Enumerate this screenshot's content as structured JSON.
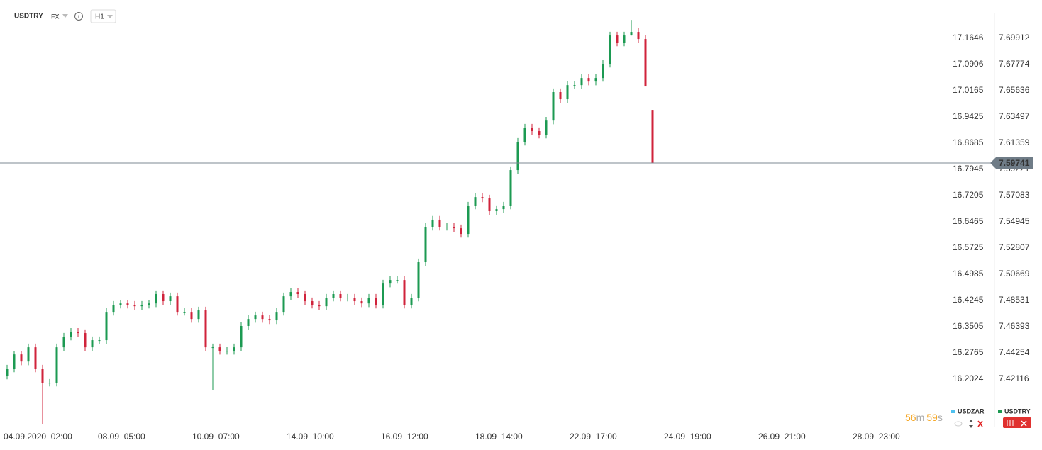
{
  "header": {
    "symbol": "USDTRY",
    "market": "FX",
    "interval": "H1"
  },
  "chart_data": {
    "type": "ohlc",
    "x": [
      0,
      1,
      2,
      3,
      4,
      5,
      6,
      7,
      8,
      9,
      10,
      11,
      12,
      13,
      14,
      15,
      16,
      17,
      18,
      19,
      20,
      21,
      22,
      23,
      24,
      25,
      26,
      27,
      28,
      29,
      30,
      31,
      32,
      33,
      34,
      35,
      36,
      37,
      38,
      39,
      40,
      41,
      42,
      43,
      44,
      45,
      46,
      47,
      48,
      49,
      50,
      51,
      52,
      53,
      54,
      55,
      56,
      57,
      58,
      59,
      60,
      61,
      62,
      63,
      64,
      65,
      66,
      67,
      68,
      69,
      70,
      71,
      72,
      73,
      74,
      75,
      76,
      77,
      78,
      79,
      80,
      81,
      82,
      83,
      84,
      85,
      86,
      87,
      88,
      89,
      90,
      91
    ],
    "series": [
      {
        "name": "USDTRY",
        "axis": "y2",
        "up_color": "#1c9a52",
        "down_color": "#d0233b",
        "open": [
          7.424,
          7.4298,
          7.4413,
          7.4355,
          7.4471,
          7.4298,
          7.4182,
          7.4182,
          7.4471,
          7.4558,
          7.4598,
          7.4587,
          7.4471,
          7.4529,
          7.4529,
          7.476,
          7.4818,
          7.4829,
          7.4818,
          7.4806,
          7.4818,
          7.4829,
          7.4905,
          7.4847,
          7.4887,
          7.476,
          7.476,
          7.4702,
          7.4772,
          7.4471,
          7.4471,
          7.4442,
          7.4442,
          7.4471,
          7.4645,
          7.4702,
          7.4731,
          7.4702,
          7.4691,
          7.476,
          7.4887,
          7.4922,
          7.4905,
          7.4847,
          7.4818,
          7.4806,
          7.4876,
          7.4905,
          7.4876,
          7.4876,
          7.4847,
          7.4829,
          7.4876,
          7.4818,
          7.4991,
          7.502,
          7.502,
          7.4818,
          7.4876,
          7.5165,
          7.5454,
          7.5512,
          7.5454,
          7.5454,
          7.5442,
          7.5396,
          7.5627,
          7.5696,
          7.5685,
          7.5581,
          7.5598,
          7.5627,
          7.5916,
          7.6147,
          7.6263,
          7.6234,
          7.6205,
          7.632,
          7.6552,
          7.6494,
          7.6609,
          7.6609,
          7.6667,
          7.6638,
          7.6667,
          7.6783,
          7.7014,
          7.6956,
          7.7014,
          7.7043,
          7.6985,
          7.6407
        ],
        "high": [
          7.4328,
          7.4443,
          7.4443,
          7.4501,
          7.4501,
          7.4328,
          7.4212,
          7.4501,
          7.4588,
          7.4628,
          7.4628,
          7.4617,
          7.4559,
          7.4559,
          7.479,
          7.4848,
          7.4859,
          7.4859,
          7.4848,
          7.4848,
          7.4859,
          7.4935,
          7.4935,
          7.4917,
          7.4917,
          7.479,
          7.479,
          7.4802,
          7.4802,
          7.4501,
          7.4501,
          7.4472,
          7.4501,
          7.4675,
          7.4732,
          7.4761,
          7.4761,
          7.4732,
          7.479,
          7.4917,
          7.4952,
          7.4952,
          7.4935,
          7.4877,
          7.4848,
          7.4906,
          7.4935,
          7.4935,
          7.4906,
          7.4906,
          7.4877,
          7.4906,
          7.4906,
          7.5021,
          7.505,
          7.505,
          7.505,
          7.4906,
          7.5195,
          7.5484,
          7.5542,
          7.5542,
          7.5484,
          7.5484,
          7.5472,
          7.5657,
          7.5726,
          7.5726,
          7.5715,
          7.5628,
          7.5657,
          7.5946,
          7.6177,
          7.6293,
          7.6293,
          7.6264,
          7.635,
          7.6582,
          7.6582,
          7.6639,
          7.6639,
          7.6697,
          7.6697,
          7.6697,
          7.6813,
          7.7044,
          7.7044,
          7.7044,
          7.7141,
          7.7073,
          7.7015,
          7.6407
        ],
        "low": [
          7.421,
          7.4268,
          7.4325,
          7.4325,
          7.4268,
          7.3847,
          7.4152,
          7.4152,
          7.4441,
          7.4528,
          7.4557,
          7.4441,
          7.4441,
          7.4499,
          7.4499,
          7.473,
          7.4788,
          7.4788,
          7.4776,
          7.4776,
          7.4788,
          7.4799,
          7.4817,
          7.4817,
          7.473,
          7.473,
          7.4672,
          7.4672,
          7.4441,
          7.4124,
          7.4412,
          7.4412,
          7.4412,
          7.4441,
          7.4615,
          7.4672,
          7.4672,
          7.4661,
          7.4661,
          7.473,
          7.4857,
          7.4875,
          7.4817,
          7.4788,
          7.4776,
          7.4776,
          7.4846,
          7.4846,
          7.4846,
          7.4817,
          7.4799,
          7.4799,
          7.4788,
          7.4788,
          7.4961,
          7.499,
          7.4788,
          7.4788,
          7.4846,
          7.5135,
          7.5424,
          7.5424,
          7.5424,
          7.5412,
          7.5366,
          7.5366,
          7.5597,
          7.5655,
          7.5551,
          7.5551,
          7.5568,
          7.5597,
          7.5886,
          7.6117,
          7.6204,
          7.6175,
          7.6175,
          7.629,
          7.6464,
          7.6464,
          7.6579,
          7.6579,
          7.6608,
          7.6608,
          7.6637,
          7.6753,
          7.6926,
          7.6926,
          7.7013,
          7.6955,
          7.6598,
          7.5974
        ],
        "close": [
          7.4298,
          7.4413,
          7.4355,
          7.4471,
          7.4298,
          7.4182,
          7.4182,
          7.4471,
          7.4558,
          7.4598,
          7.4587,
          7.4471,
          7.4529,
          7.4529,
          7.476,
          7.4818,
          7.4829,
          7.4818,
          7.4806,
          7.4818,
          7.4829,
          7.4905,
          7.4847,
          7.4887,
          7.476,
          7.476,
          7.4702,
          7.4772,
          7.4471,
          7.4471,
          7.4442,
          7.4442,
          7.4471,
          7.4645,
          7.4702,
          7.4731,
          7.4702,
          7.4691,
          7.476,
          7.4887,
          7.4922,
          7.4905,
          7.4847,
          7.4818,
          7.4806,
          7.4876,
          7.4905,
          7.4876,
          7.4876,
          7.4847,
          7.4829,
          7.4876,
          7.4818,
          7.4991,
          7.502,
          7.502,
          7.4818,
          7.4876,
          7.5165,
          7.5454,
          7.5512,
          7.5454,
          7.5454,
          7.5442,
          7.5396,
          7.5627,
          7.5696,
          7.5685,
          7.5581,
          7.5598,
          7.5627,
          7.5916,
          7.6147,
          7.6263,
          7.6234,
          7.6205,
          7.632,
          7.6552,
          7.6494,
          7.6609,
          7.6609,
          7.6667,
          7.6638,
          7.6667,
          7.6783,
          7.7014,
          7.6956,
          7.7014,
          7.7043,
          7.6985,
          7.6598,
          7.5974
        ]
      }
    ],
    "legend": [
      {
        "name": "USDZAR",
        "color": "#4fc1ef"
      },
      {
        "name": "USDTRY",
        "color": "#1c9a52"
      }
    ],
    "xlim": [
      -1,
      139
    ],
    "xticks": [
      {
        "value": -0.5,
        "label": "04.09.2020  02:00"
      },
      {
        "value": 12.8,
        "label": "08.09  05:00"
      },
      {
        "value": 26.1,
        "label": "10.09  07:00"
      },
      {
        "value": 39.4,
        "label": "14.09  10:00"
      },
      {
        "value": 52.7,
        "label": "16.09  12:00"
      },
      {
        "value": 66,
        "label": "18.09  14:00"
      },
      {
        "value": 79.3,
        "label": "22.09  17:00"
      },
      {
        "value": 92.6,
        "label": "24.09  19:00"
      },
      {
        "value": 105.9,
        "label": "26.09  21:00"
      },
      {
        "value": 119.2,
        "label": "28.09  23:00"
      }
    ],
    "ylim": [
      16.0664,
      17.2726
    ],
    "yticks": [
      17.1646,
      17.0906,
      17.0165,
      16.9425,
      16.8685,
      16.7945,
      16.7205,
      16.6465,
      16.5725,
      16.4985,
      16.4245,
      16.3505,
      16.2765,
      16.2024
    ],
    "y2lim": [
      7.38186,
      7.73033
    ],
    "y2ticks": [
      7.69912,
      7.67774,
      7.65636,
      7.63497,
      7.61359,
      7.59221,
      7.57083,
      7.54945,
      7.52807,
      7.50669,
      7.48531,
      7.46393,
      7.44254,
      7.42116
    ],
    "last_price": 7.59741,
    "countdown": {
      "minutes": 56,
      "minutes_unit": "m",
      "seconds": 59,
      "seconds_unit": "s"
    }
  }
}
